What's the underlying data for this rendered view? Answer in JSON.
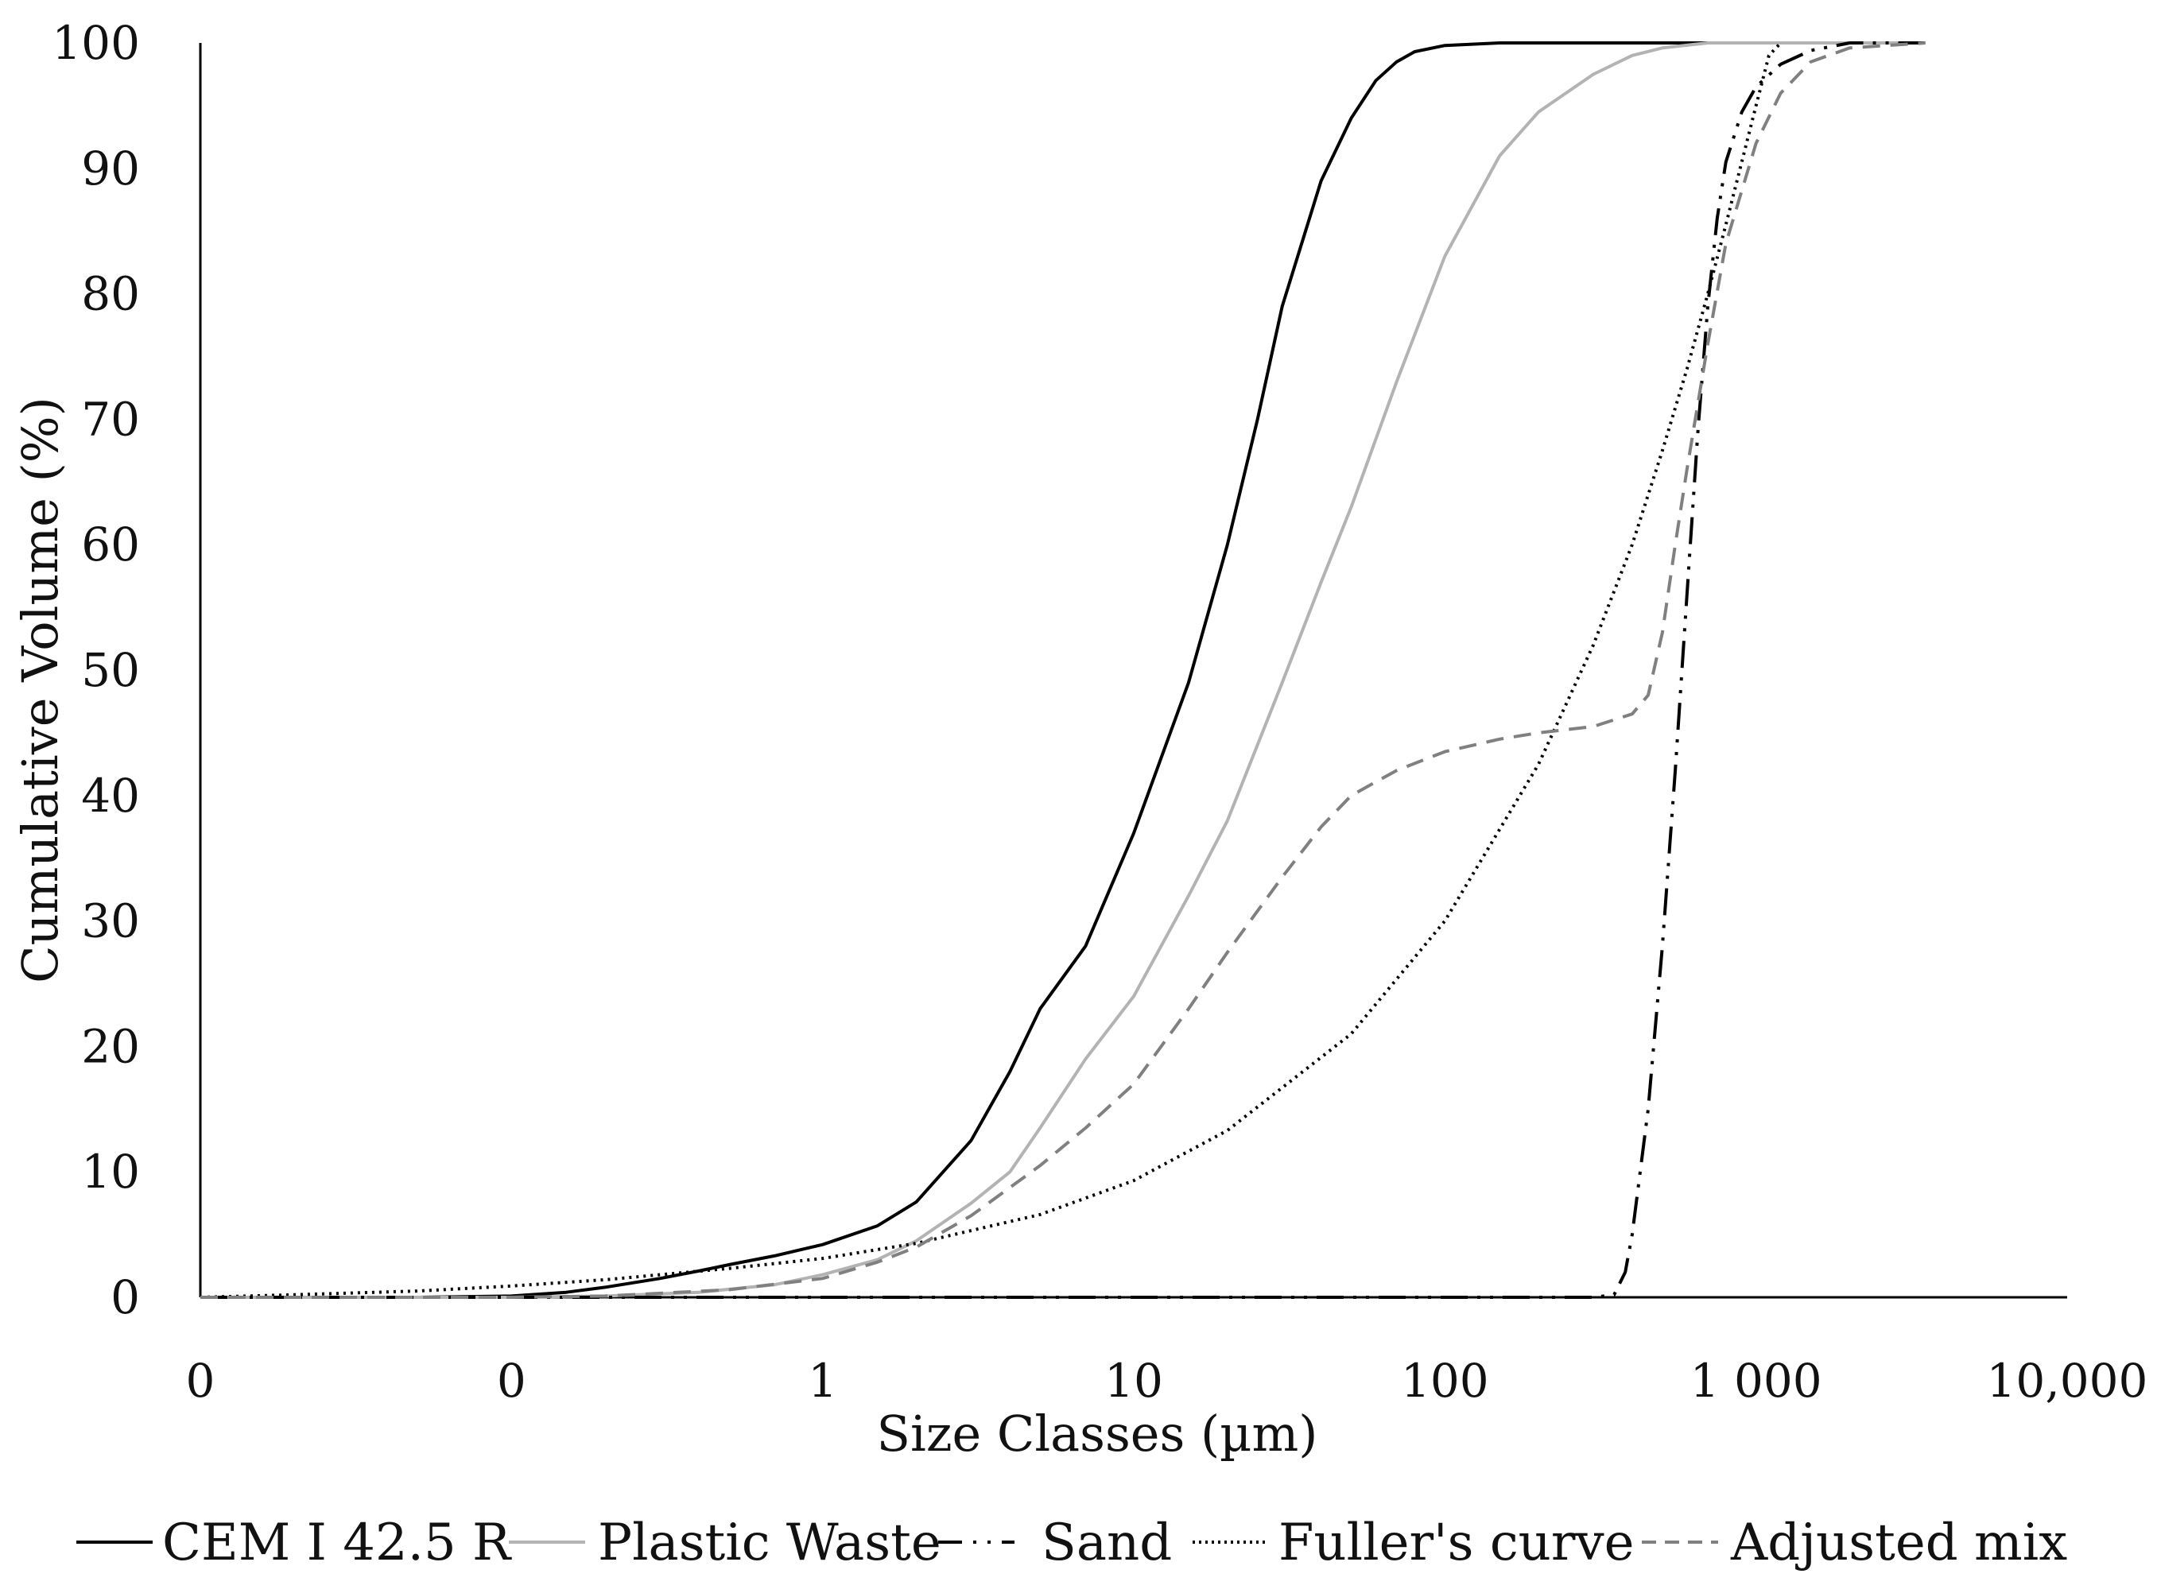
{
  "chart_data": {
    "type": "line",
    "x_scale": "log",
    "xlabel": "Size Classes (µm)",
    "ylabel": "Cumulative Volume (%)",
    "xlim": [
      0.01,
      10000
    ],
    "ylim": [
      0,
      100
    ],
    "x_tick_values": [
      0.01,
      0.1,
      1,
      10,
      100,
      1000,
      10000
    ],
    "x_tick_labels": [
      "0",
      "0",
      "1",
      "10",
      "100",
      "1 000",
      "10,000"
    ],
    "y_ticks": [
      0,
      10,
      20,
      30,
      40,
      50,
      60,
      70,
      80,
      90,
      100
    ],
    "grid": false,
    "legend_position": "bottom",
    "series": [
      {
        "name": "CEM I 42.5 R",
        "color": "#000000",
        "dash": "solid",
        "x": [
          0.01,
          0.05,
          0.1,
          0.15,
          0.2,
          0.3,
          0.4,
          0.5,
          0.7,
          1,
          1.5,
          2,
          3,
          4,
          5,
          7,
          10,
          15,
          20,
          25,
          30,
          40,
          50,
          60,
          70,
          80,
          100,
          150,
          200,
          1000,
          3500
        ],
        "y": [
          0,
          0,
          0.1,
          0.4,
          0.8,
          1.5,
          2.1,
          2.6,
          3.3,
          4.2,
          5.7,
          7.6,
          12.5,
          18,
          23,
          28,
          37,
          49,
          60,
          70,
          79,
          89,
          94,
          97,
          98.5,
          99.3,
          99.8,
          100,
          100,
          100,
          100
        ]
      },
      {
        "name": "Plastic Waste",
        "color": "#b3b3b3",
        "dash": "solid",
        "x": [
          0.01,
          0.1,
          0.2,
          0.4,
          0.7,
          1,
          1.5,
          2,
          3,
          4,
          5,
          7,
          10,
          15,
          20,
          30,
          40,
          50,
          70,
          100,
          150,
          200,
          300,
          400,
          500,
          700,
          1000,
          3500
        ],
        "y": [
          0,
          0,
          0.1,
          0.4,
          1,
          1.8,
          3,
          4.5,
          7.5,
          10,
          13.5,
          19,
          24,
          32,
          38,
          49,
          57,
          63,
          73,
          83,
          91,
          94.5,
          97.5,
          99,
          99.6,
          100,
          100,
          100
        ]
      },
      {
        "name": "Sand",
        "color": "#000000",
        "dash": "dashdotdot",
        "x": [
          0.01,
          1,
          10,
          100,
          300,
          350,
          380,
          400,
          450,
          500,
          550,
          600,
          650,
          700,
          750,
          800,
          900,
          1000,
          1200,
          1500,
          2000,
          3500
        ],
        "y": [
          0,
          0,
          0,
          0,
          0,
          0.2,
          2,
          5,
          15,
          28,
          42,
          56,
          69,
          79,
          86,
          90.5,
          94.5,
          96.5,
          98.3,
          99.4,
          100,
          100
        ]
      },
      {
        "name": "Fuller's curve",
        "color": "#000000",
        "dash": "dotted",
        "x": [
          0.01,
          0.02,
          0.05,
          0.1,
          0.2,
          0.5,
          1,
          2,
          5,
          10,
          20,
          50,
          100,
          200,
          300,
          400,
          500,
          600,
          700,
          800,
          1000,
          1100,
          1200
        ],
        "y": [
          0,
          0.2,
          0.5,
          0.9,
          1.4,
          2.3,
          3.1,
          4.3,
          6.6,
          9.3,
          13.3,
          21,
          30,
          42.5,
          52,
          60,
          67.5,
          74,
          80,
          85.5,
          95,
          99,
          100
        ]
      },
      {
        "name": "Adjusted mix",
        "color": "#808080",
        "dash": "dashed",
        "x": [
          0.01,
          0.1,
          0.2,
          0.5,
          1,
          1.5,
          2,
          3,
          5,
          7,
          10,
          15,
          20,
          30,
          40,
          50,
          70,
          100,
          150,
          200,
          300,
          400,
          450,
          500,
          550,
          600,
          700,
          800,
          1000,
          1200,
          1500,
          2000,
          3500
        ],
        "y": [
          0,
          0,
          0.1,
          0.6,
          1.5,
          2.8,
          4,
          6.5,
          10.5,
          13.5,
          17,
          23,
          27.5,
          33.5,
          37.5,
          40,
          42,
          43.5,
          44.5,
          45,
          45.5,
          46.5,
          48,
          53,
          60,
          66,
          76,
          84,
          92,
          96,
          98.5,
          99.6,
          100
        ]
      }
    ]
  }
}
